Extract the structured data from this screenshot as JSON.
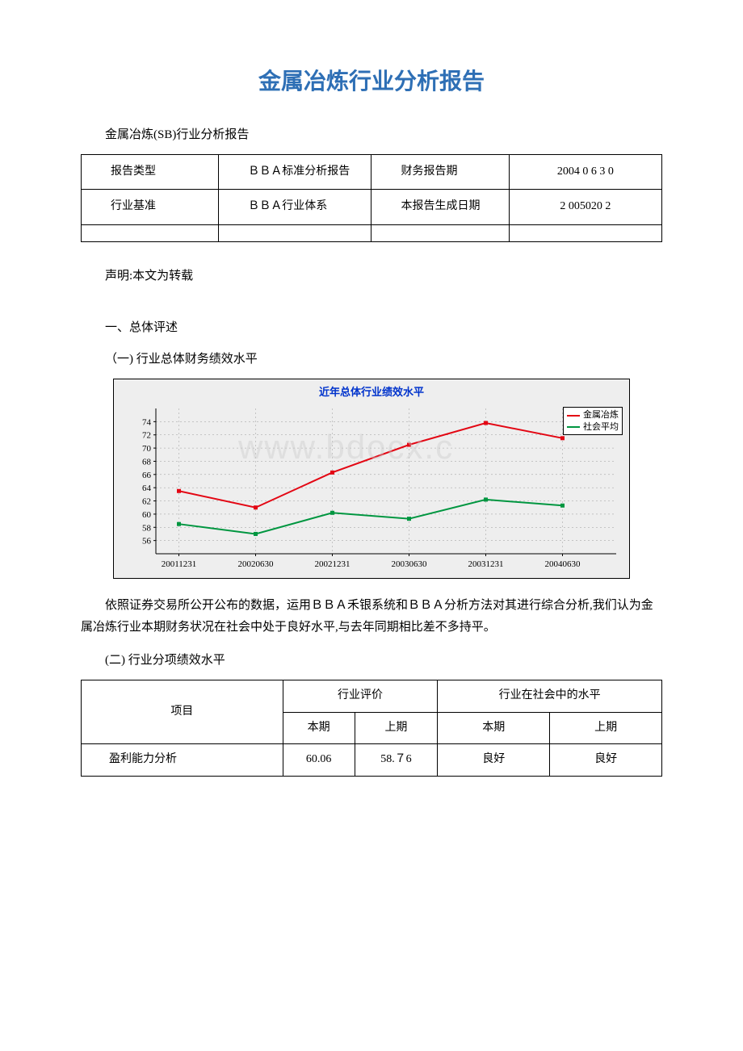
{
  "title": "金属冶炼行业分析报告",
  "subtitle": "金属冶炼(SB)行业分析报告",
  "meta_table": {
    "rows": [
      [
        "报告类型",
        "ＢＢＡ标准分析报告",
        "财务报告期",
        "2004 0 6 3 0"
      ],
      [
        "行业基准",
        "ＢＢＡ行业体系",
        "本报告生成日期",
        "2 005020 2"
      ],
      [
        "",
        "",
        "",
        ""
      ]
    ]
  },
  "statement": "声明:本文为转载",
  "section1": "一、总体评述",
  "subsection1": "（一) 行业总体财务绩效水平",
  "chart": {
    "type": "line",
    "title": "近年总体行业绩效水平",
    "title_color": "#0033cc",
    "title_fontsize": 13,
    "background_color": "#eeeeee",
    "plot_background": "#eeeeee",
    "grid_color": "#999999",
    "axis_color": "#000000",
    "watermark": "www.bdocx.c",
    "xlim": [
      0,
      6
    ],
    "ylim": [
      54,
      76
    ],
    "ytick_step": 2,
    "yticks": [
      56,
      58,
      60,
      62,
      64,
      66,
      68,
      70,
      72,
      74
    ],
    "x_categories": [
      "20011231",
      "20020630",
      "20021231",
      "20030630",
      "20031231",
      "20040630"
    ],
    "legend": {
      "position": "top-right",
      "items": [
        {
          "label": "金属冶炼",
          "color": "#e30613"
        },
        {
          "label": "社会平均",
          "color": "#009640"
        }
      ]
    },
    "series": [
      {
        "name": "金属冶炼",
        "color": "#e30613",
        "line_width": 2,
        "marker": "square",
        "values": [
          63.5,
          61.0,
          66.3,
          70.5,
          73.8,
          71.5
        ]
      },
      {
        "name": "社会平均",
        "color": "#009640",
        "line_width": 2,
        "marker": "square",
        "values": [
          58.5,
          57.0,
          60.2,
          59.3,
          62.2,
          61.3
        ]
      }
    ],
    "tick_fontsize": 11
  },
  "paragraph1": "依照证券交易所公开公布的数据，运用ＢＢＡ禾银系统和ＢＢＡ分析方法对其进行综合分析,我们认为金属冶炼行业本期财务状况在社会中处于良好水平,与去年同期相比差不多持平。",
  "subsection2": "(二) 行业分项绩效水平",
  "perf_table": {
    "header1": [
      "项目",
      "行业评价",
      "行业在社会中的水平"
    ],
    "header2": [
      "本期",
      "上期",
      "本期",
      "上期"
    ],
    "rows": [
      [
        "盈利能力分析",
        "60.06",
        "58.７6",
        "良好",
        "良好"
      ]
    ]
  }
}
